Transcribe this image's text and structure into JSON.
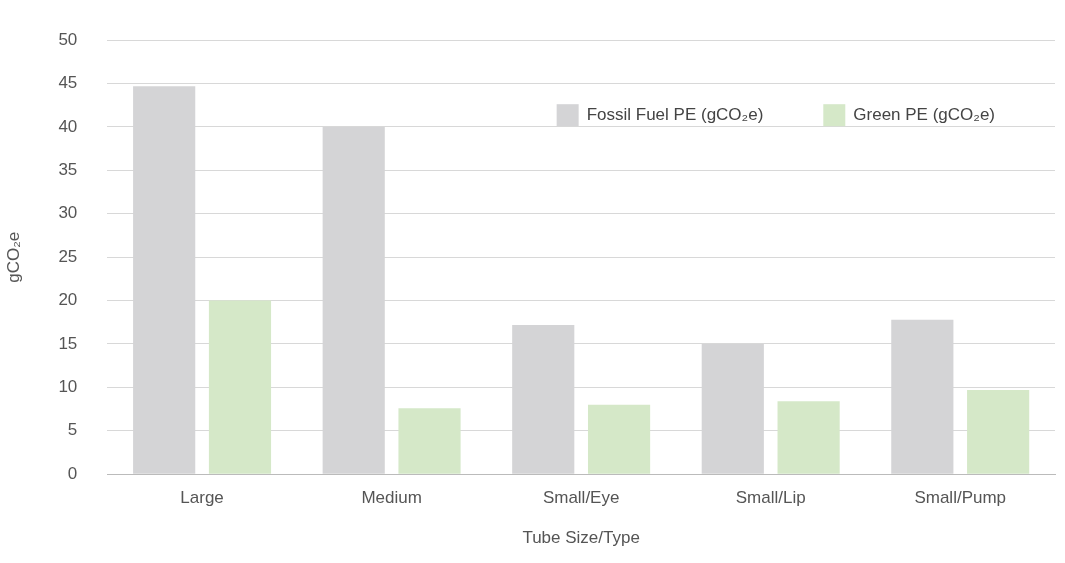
{
  "chart_data": {
    "type": "bar",
    "xlabel": "Tube Size/Type",
    "ylabel": "gCO₂e",
    "categories": [
      "Large",
      "Medium",
      "Small/Eye",
      "Small/Lip",
      "Small/Pump"
    ],
    "series": [
      {
        "name": "Fossil Fuel PE (gCO₂e)",
        "color": "#d4d4d6",
        "values": [
          44.7,
          40,
          17.2,
          15,
          17.8
        ]
      },
      {
        "name": "Green PE (gCO₂e)",
        "color": "#d5e8c8",
        "values": [
          20,
          7.6,
          8,
          8.4,
          9.7
        ]
      }
    ],
    "ylim": [
      0,
      50
    ],
    "yticks": [
      0,
      5,
      10,
      15,
      20,
      25,
      30,
      35,
      40,
      45,
      50
    ],
    "grid": "y",
    "legend": "top right"
  }
}
